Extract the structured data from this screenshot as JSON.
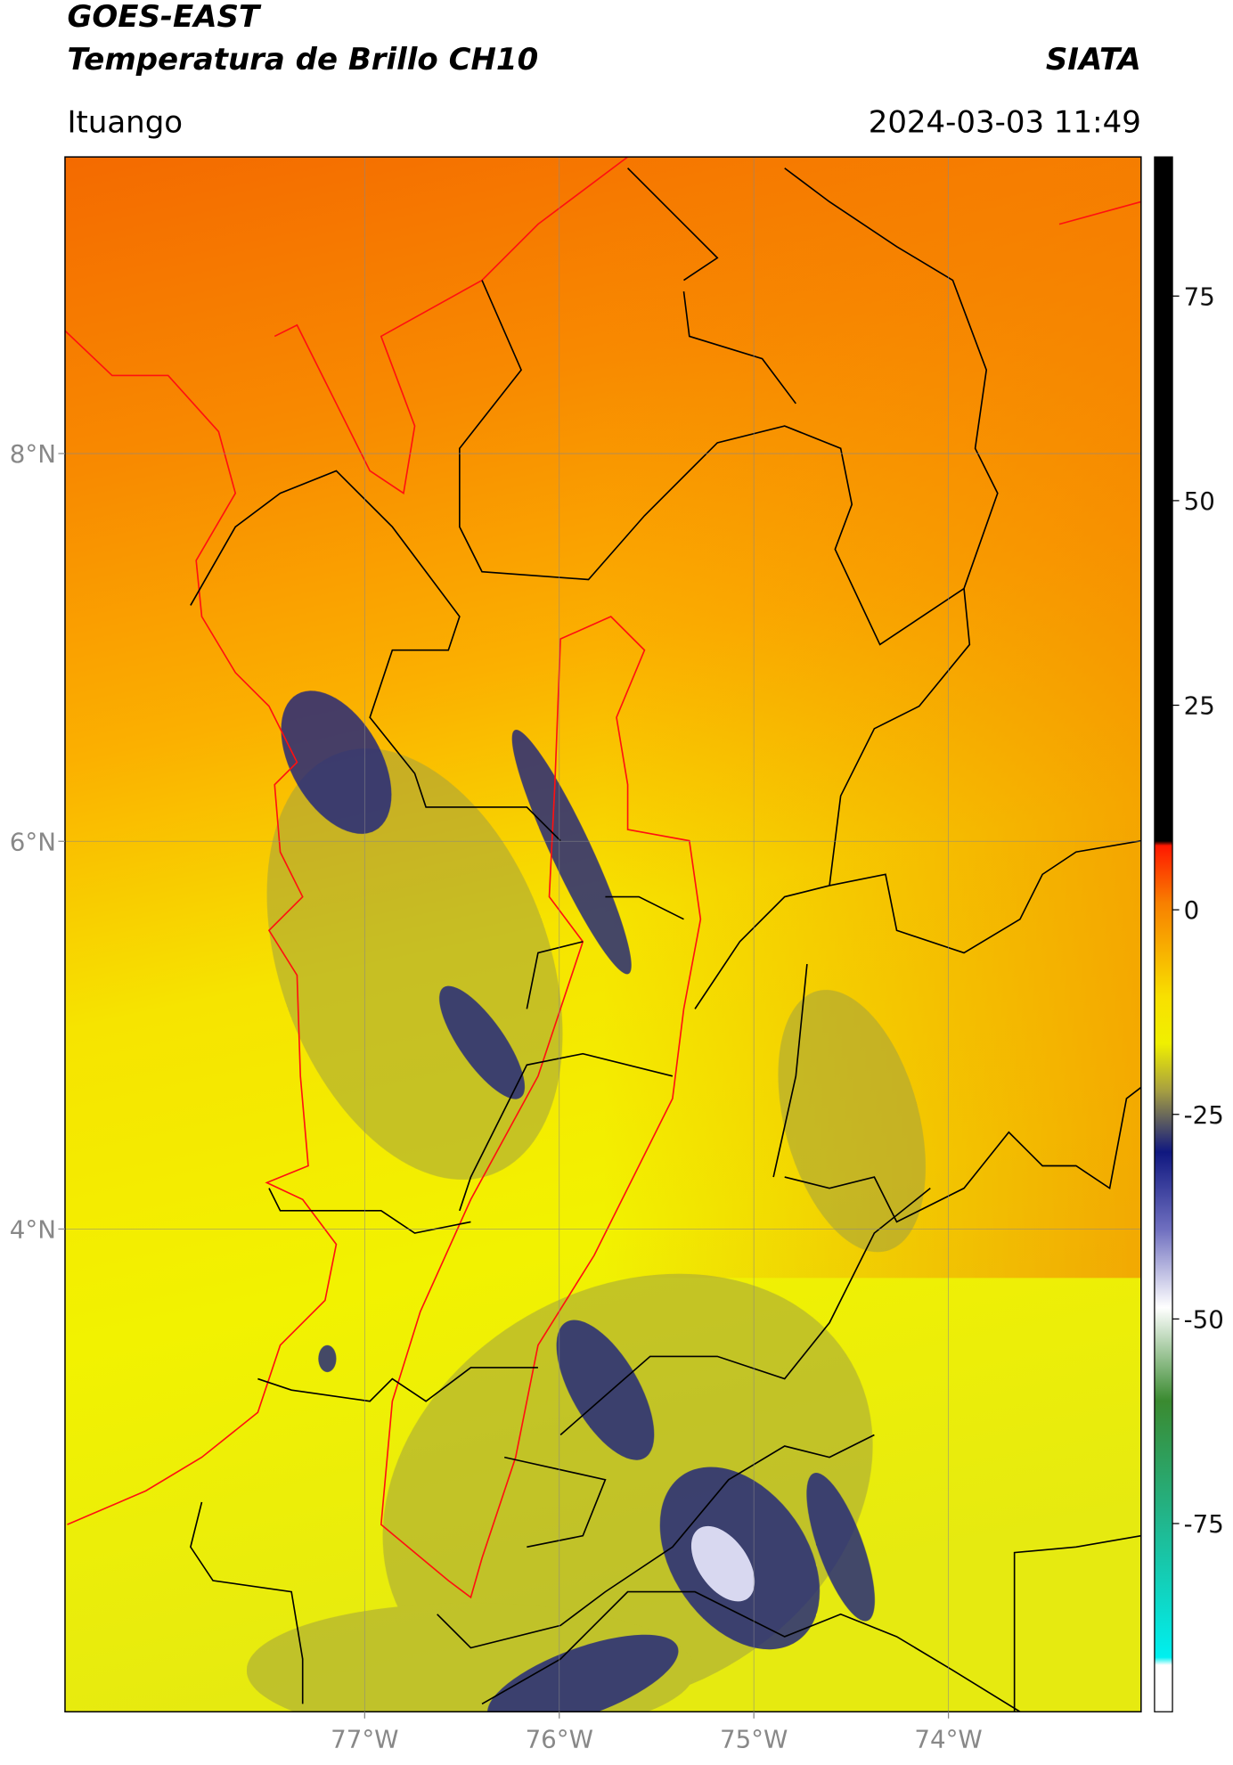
{
  "chart_data": {
    "type": "map",
    "title": "GOES-EAST",
    "subtitle": "Temperatura de Brillo CH10",
    "source": "SIATA",
    "region": "Ituango",
    "timestamp": "2024-03-03 11:49",
    "xlim": [
      -78.54,
      -73.01
    ],
    "ylim": [
      1.51,
      9.53
    ],
    "xticks": [
      {
        "value": -77,
        "label": "77°W"
      },
      {
        "value": -76,
        "label": "76°W"
      },
      {
        "value": -75,
        "label": "75°W"
      },
      {
        "value": -74,
        "label": "74°W"
      }
    ],
    "yticks": [
      {
        "value": 8,
        "label": "8°N"
      },
      {
        "value": 6,
        "label": "6°N"
      },
      {
        "value": 4,
        "label": "4°N"
      }
    ],
    "grid": true,
    "colorbar": {
      "lim": [
        -98,
        92
      ],
      "ticks": [
        75,
        50,
        25,
        0,
        -25,
        -50,
        -75
      ]
    }
  }
}
